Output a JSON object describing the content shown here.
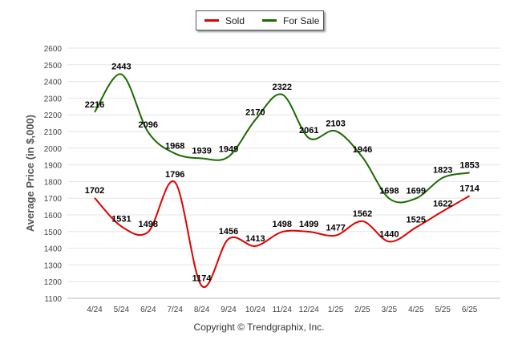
{
  "chart_data": {
    "type": "line",
    "categories": [
      "4/24",
      "5/24",
      "6/24",
      "7/24",
      "8/24",
      "9/24",
      "10/24",
      "11/24",
      "12/24",
      "1/25",
      "2/25",
      "3/25",
      "4/25",
      "5/25",
      "6/25"
    ],
    "series": [
      {
        "name": "Sold",
        "color": "#e00000",
        "values": [
          1702,
          1531,
          1498,
          1796,
          1174,
          1456,
          1413,
          1498,
          1499,
          1477,
          1562,
          1440,
          1525,
          1622,
          1714
        ]
      },
      {
        "name": "For Sale",
        "color": "#1b6b00",
        "values": [
          2216,
          2443,
          2096,
          1968,
          1939,
          1949,
          2170,
          2322,
          2061,
          2103,
          1946,
          1698,
          1699,
          1823,
          1853
        ]
      }
    ],
    "ylabel": "Average Price (in $,000)",
    "xlabel": "",
    "ylim": [
      1100,
      2600
    ],
    "yticks": [
      1100,
      1200,
      1300,
      1400,
      1500,
      1600,
      1700,
      1800,
      1900,
      2000,
      2100,
      2200,
      2300,
      2400,
      2500,
      2600
    ],
    "grid": true,
    "legend": "top-center"
  },
  "footer": {
    "copyright": "Copyright © Trendgraphix, Inc."
  }
}
